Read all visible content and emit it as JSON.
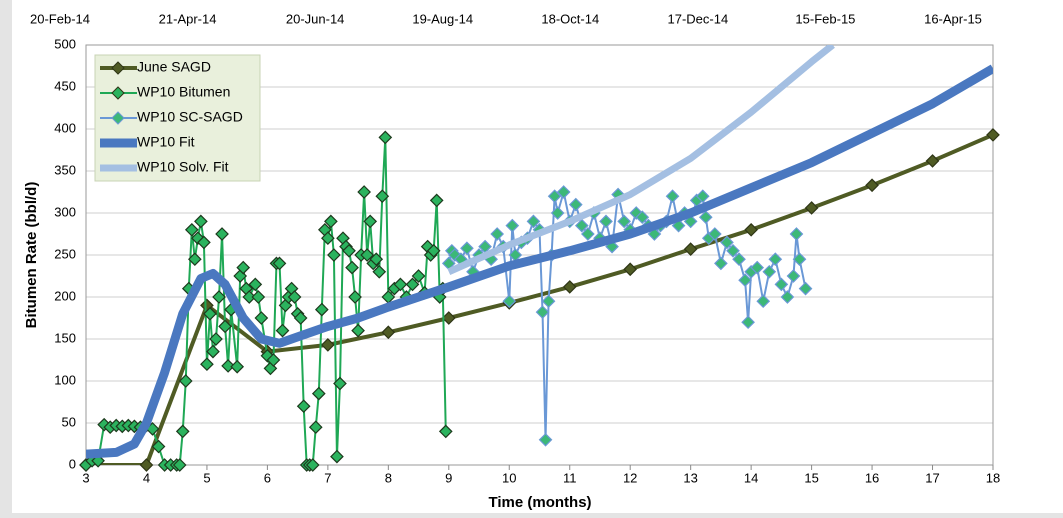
{
  "chart_data": {
    "type": "line",
    "xlabel": "Time (months)",
    "ylabel": "Bitumen Rate (bbl/d)",
    "x2_labels": [
      "20-Feb-14",
      "21-Apr-14",
      "20-Jun-14",
      "19-Aug-14",
      "18-Oct-14",
      "17-Dec-14",
      "15-Feb-15",
      "16-Apr-15"
    ],
    "xlim": [
      3,
      18
    ],
    "xticks": [
      3,
      4,
      5,
      6,
      7,
      8,
      9,
      10,
      11,
      12,
      13,
      14,
      15,
      16,
      17,
      18
    ],
    "ylim": [
      0,
      500
    ],
    "yticks": [
      0,
      50,
      100,
      150,
      200,
      250,
      300,
      350,
      400,
      450,
      500
    ],
    "grid": true,
    "legend": "upper left",
    "series": [
      {
        "name": "June SAGD",
        "color": "#4f5b24",
        "marker_color": "#4f5b24",
        "line_width": 4,
        "marker": true,
        "x": [
          3,
          4,
          5,
          6,
          7,
          8,
          9,
          10,
          11,
          12,
          13,
          14,
          15,
          16,
          17,
          18
        ],
        "values": [
          0,
          0,
          190,
          135,
          143,
          158,
          175,
          193,
          212,
          233,
          257,
          280,
          306,
          333,
          362,
          393
        ]
      },
      {
        "name": "WP10 Bitumen",
        "color": "#1fa855",
        "marker_color": "#2bb35e",
        "line_width": 2,
        "marker": true,
        "x": [
          3.0,
          3.1,
          3.2,
          3.3,
          3.4,
          3.5,
          3.6,
          3.7,
          3.8,
          3.9,
          4.0,
          4.1,
          4.2,
          4.3,
          4.4,
          4.5,
          4.55,
          4.6,
          4.65,
          4.7,
          4.75,
          4.8,
          4.85,
          4.9,
          4.95,
          5.0,
          5.05,
          5.1,
          5.15,
          5.2,
          5.25,
          5.3,
          5.35,
          5.4,
          5.5,
          5.55,
          5.6,
          5.65,
          5.7,
          5.8,
          5.85,
          5.9,
          6.0,
          6.05,
          6.1,
          6.15,
          6.2,
          6.25,
          6.3,
          6.35,
          6.4,
          6.45,
          6.5,
          6.55,
          6.6,
          6.65,
          6.7,
          6.75,
          6.8,
          6.85,
          6.9,
          6.95,
          7.0,
          7.05,
          7.1,
          7.15,
          7.2,
          7.25,
          7.3,
          7.35,
          7.4,
          7.45,
          7.5,
          7.55,
          7.6,
          7.65,
          7.7,
          7.75,
          7.8,
          7.85,
          7.9,
          7.95,
          8.0,
          8.1,
          8.2,
          8.3,
          8.4,
          8.5,
          8.6,
          8.65,
          8.7,
          8.75,
          8.8,
          8.85,
          8.9,
          8.95
        ],
        "values": [
          0,
          5,
          5,
          48,
          45,
          47,
          46,
          47,
          46,
          45,
          47,
          43,
          22,
          0,
          0,
          0,
          0,
          40,
          100,
          210,
          280,
          245,
          270,
          290,
          265,
          120,
          180,
          135,
          150,
          200,
          275,
          165,
          118,
          185,
          117,
          225,
          235,
          210,
          200,
          215,
          200,
          175,
          130,
          115,
          125,
          240,
          240,
          160,
          190,
          200,
          210,
          200,
          180,
          175,
          70,
          0,
          0,
          0,
          45,
          85,
          185,
          280,
          270,
          290,
          250,
          10,
          97,
          270,
          260,
          255,
          235,
          200,
          160,
          250,
          325,
          250,
          290,
          240,
          245,
          230,
          320,
          390,
          200,
          210,
          215,
          200,
          215,
          225,
          205,
          260,
          250,
          255,
          315,
          200,
          210,
          40
        ]
      },
      {
        "name": "WP10 SC-SAGD",
        "color": "#6a98d6",
        "marker_color": "#3cb878",
        "line_width": 2,
        "marker": true,
        "x": [
          9.0,
          9.05,
          9.1,
          9.2,
          9.3,
          9.4,
          9.5,
          9.6,
          9.7,
          9.8,
          9.9,
          10.0,
          10.05,
          10.1,
          10.2,
          10.3,
          10.4,
          10.5,
          10.55,
          10.6,
          10.65,
          10.7,
          10.75,
          10.8,
          10.9,
          11.0,
          11.1,
          11.2,
          11.3,
          11.4,
          11.5,
          11.6,
          11.7,
          11.8,
          11.9,
          12.0,
          12.1,
          12.2,
          12.3,
          12.4,
          12.5,
          12.6,
          12.7,
          12.8,
          12.9,
          13.0,
          13.1,
          13.2,
          13.25,
          13.3,
          13.4,
          13.5,
          13.6,
          13.7,
          13.8,
          13.9,
          13.95,
          14.0,
          14.1,
          14.2,
          14.3,
          14.4,
          14.5,
          14.6,
          14.7,
          14.75,
          14.8,
          14.9
        ],
        "values": [
          240,
          255,
          250,
          245,
          258,
          230,
          250,
          260,
          245,
          275,
          260,
          195,
          285,
          250,
          265,
          270,
          290,
          280,
          182,
          30,
          195,
          250,
          320,
          300,
          325,
          290,
          310,
          285,
          275,
          300,
          270,
          290,
          260,
          322,
          290,
          280,
          300,
          295,
          285,
          275,
          285,
          290,
          320,
          285,
          300,
          290,
          315,
          320,
          295,
          270,
          275,
          240,
          265,
          255,
          245,
          220,
          170,
          230,
          235,
          195,
          230,
          245,
          215,
          200,
          225,
          275,
          245,
          210
        ]
      },
      {
        "name": "WP10 Fit",
        "color": "#4a78c0",
        "line_width": 9,
        "marker": false,
        "x": [
          3,
          3.5,
          3.8,
          4,
          4.3,
          4.6,
          4.9,
          5.1,
          5.3,
          5.6,
          5.9,
          6.2,
          6.6,
          7,
          7.5,
          8,
          8.5,
          9,
          10,
          11,
          12,
          13,
          14,
          15,
          16,
          17,
          18
        ],
        "values": [
          13,
          15,
          25,
          50,
          110,
          180,
          222,
          228,
          215,
          175,
          150,
          145,
          155,
          165,
          175,
          188,
          200,
          212,
          237,
          255,
          275,
          300,
          330,
          360,
          395,
          430,
          472
        ]
      },
      {
        "name": "WP10 Solv. Fit",
        "color": "#a4bfe2",
        "line_width": 7,
        "marker": false,
        "x": [
          9,
          10,
          11,
          12,
          13,
          14,
          15,
          15.35
        ],
        "values": [
          230,
          262,
          290,
          322,
          365,
          420,
          480,
          500
        ]
      }
    ]
  }
}
